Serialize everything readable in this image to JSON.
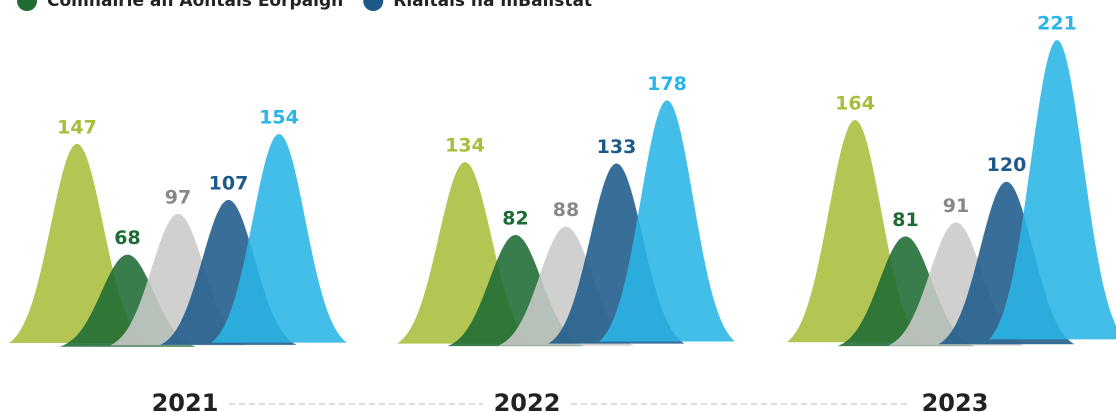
{
  "chart_data": {
    "type": "bell",
    "categories": [
      "2021",
      "2022",
      "2023"
    ],
    "series": [
      {
        "color": "#a9bd3a",
        "values": [
          147,
          134,
          164
        ]
      },
      {
        "name": "Comhairle an Aontais Eorpaigh",
        "color": "#1e6b33",
        "values": [
          68,
          82,
          81
        ]
      },
      {
        "color": "#c9c9c9",
        "values": [
          97,
          88,
          91
        ]
      },
      {
        "name": "Rialtais na mBallstát",
        "color": "#1c5a8a",
        "values": [
          107,
          133,
          120
        ]
      },
      {
        "color": "#29b5e6",
        "values": [
          154,
          178,
          221
        ]
      }
    ]
  }
}
